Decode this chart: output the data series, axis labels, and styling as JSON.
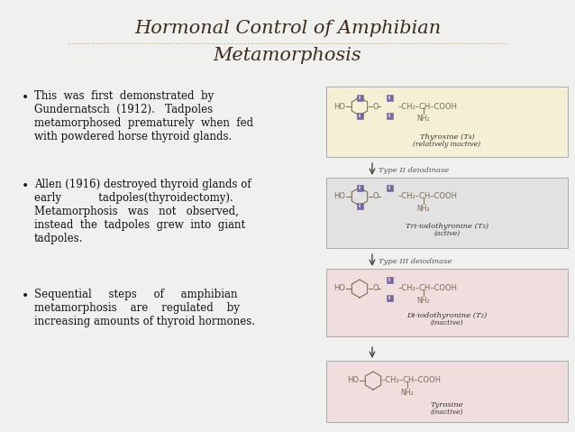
{
  "title_line1": "Hormonal Control of Amphibian",
  "title_line2": "Metamorphosis",
  "title_color": "#3d2b1f",
  "background_color": "#f0f0ee",
  "bullet_points": [
    "This  was  first  demonstrated  by\nGundernatsch  (1912).   Tadpoles\nmetamorphosed  prematurely  when  fed\nwith powdered horse thyroid glands.",
    "Allen (1916) destroyed thyroid glands of\nearly           tadpoles(thyroidectomy).\nMetamorphosis   was   not   observed,\ninstead  the  tadpoles  grew  into  giant\ntadpoles.",
    "Sequential     steps     of     amphibian\nmetamorphosis    are    regulated    by\nincreasing amounts of thyroid hormones."
  ],
  "box1_color": "#f5f0d5",
  "box2_color": "#e2e2e2",
  "box3_color": "#f0dede",
  "box4_color": "#f0dede",
  "box_edge_color": "#aaaaaa",
  "label1_main": "Thyroxine (T₄)",
  "label1_sub": "(relatively inactive)",
  "label2_main": "Tri-iodothyronine (T₃)",
  "label2_sub": "(active)",
  "label3_main": "Di-iodothyronine (T₂)",
  "label3_sub": "(inactive)",
  "label4_main": "Tyrosine",
  "label4_sub": "(inactive)",
  "arrow1_label": "Type II deiodinase",
  "arrow2_label": "Type III deiodinase",
  "iodine_color": "#6b5b95",
  "struct_color": "#7a6a55",
  "arrow_color": "#444444",
  "label_fontsize": 6,
  "bullet_fontsize": 8.5
}
